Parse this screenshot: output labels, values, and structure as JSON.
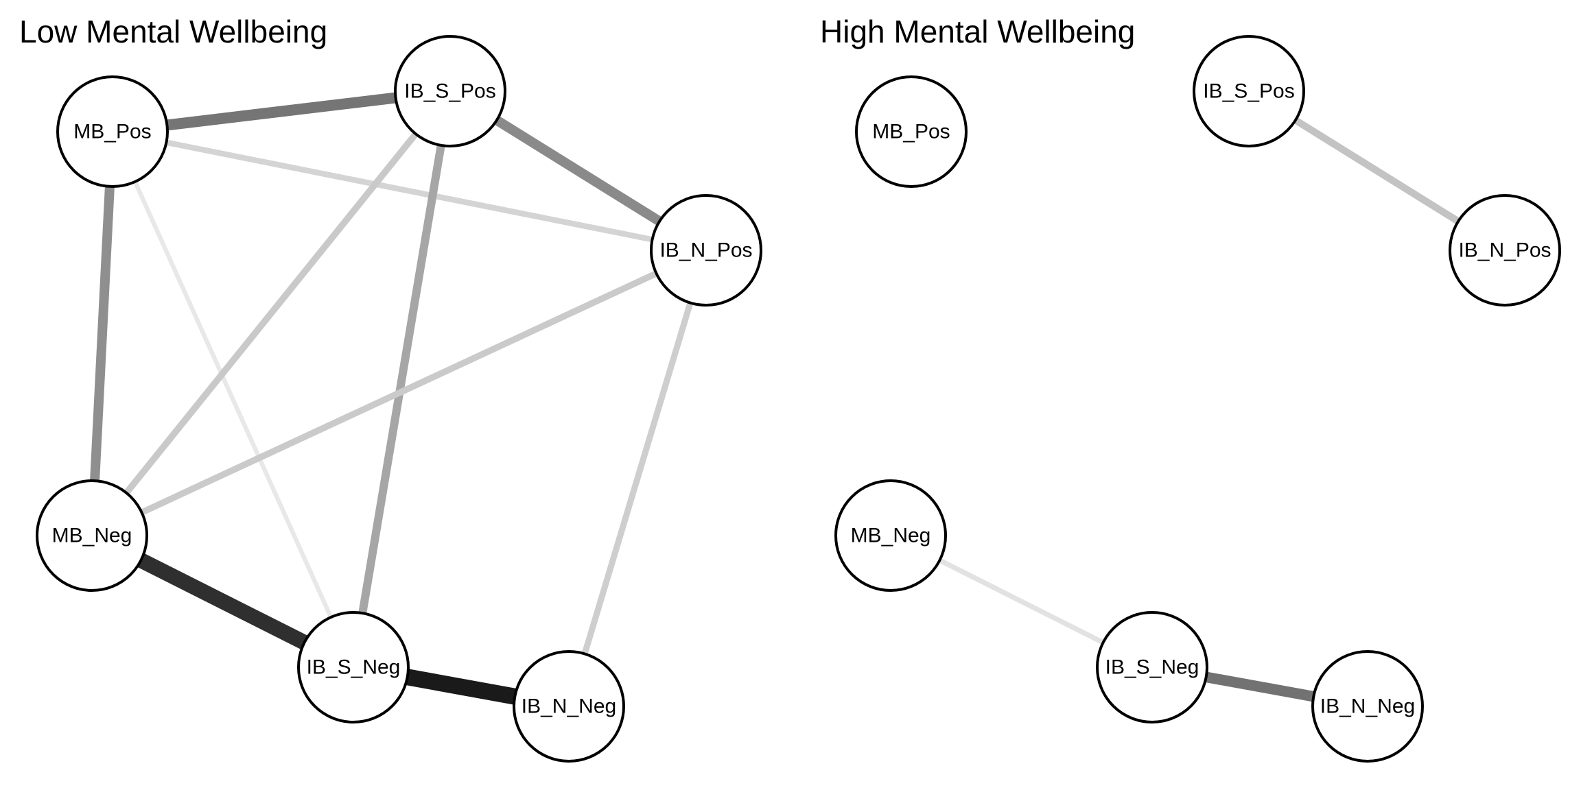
{
  "panels": [
    {
      "id": "low",
      "title": "Low Mental Wellbeing",
      "nodes": [
        {
          "id": "MB_Pos",
          "label": "MB_Pos"
        },
        {
          "id": "IB_S_Pos",
          "label": "IB_S_Pos"
        },
        {
          "id": "IB_N_Pos",
          "label": "IB_N_Pos"
        },
        {
          "id": "MB_Neg",
          "label": "MB_Neg"
        },
        {
          "id": "IB_S_Neg",
          "label": "IB_S_Neg"
        },
        {
          "id": "IB_N_Neg",
          "label": "IB_N_Neg"
        }
      ],
      "edges": [
        {
          "from": "MB_Pos",
          "to": "IB_S_Pos",
          "strength": 0.6,
          "color": "#757575"
        },
        {
          "from": "MB_Pos",
          "to": "IB_N_Pos",
          "strength": 0.22,
          "color": "#d4d4d4"
        },
        {
          "from": "MB_Pos",
          "to": "MB_Neg",
          "strength": 0.5,
          "color": "#8f8f8f"
        },
        {
          "from": "MB_Pos",
          "to": "IB_S_Neg",
          "strength": 0.12,
          "color": "#e8e8e8"
        },
        {
          "from": "IB_S_Pos",
          "to": "IB_N_Pos",
          "strength": 0.52,
          "color": "#8a8a8a"
        },
        {
          "from": "IB_S_Pos",
          "to": "MB_Neg",
          "strength": 0.28,
          "color": "#c9c9c9"
        },
        {
          "from": "IB_S_Pos",
          "to": "IB_S_Neg",
          "strength": 0.4,
          "color": "#a6a6a6"
        },
        {
          "from": "IB_N_Pos",
          "to": "MB_Neg",
          "strength": 0.27,
          "color": "#cacaca"
        },
        {
          "from": "IB_N_Pos",
          "to": "IB_N_Neg",
          "strength": 0.25,
          "color": "#cecece"
        },
        {
          "from": "MB_Neg",
          "to": "IB_S_Neg",
          "strength": 0.92,
          "color": "#2f2f2f"
        },
        {
          "from": "IB_S_Neg",
          "to": "IB_N_Neg",
          "strength": 1.0,
          "color": "#1a1a1a"
        }
      ]
    },
    {
      "id": "high",
      "title": "High Mental Wellbeing",
      "nodes": [
        {
          "id": "MB_Pos",
          "label": "MB_Pos"
        },
        {
          "id": "IB_S_Pos",
          "label": "IB_S_Pos"
        },
        {
          "id": "IB_N_Pos",
          "label": "IB_N_Pos"
        },
        {
          "id": "MB_Neg",
          "label": "MB_Neg"
        },
        {
          "id": "IB_S_Neg",
          "label": "IB_S_Neg"
        },
        {
          "id": "IB_N_Neg",
          "label": "IB_N_Neg"
        }
      ],
      "edges": [
        {
          "from": "IB_S_Pos",
          "to": "IB_N_Pos",
          "strength": 0.32,
          "color": "#c3c3c3"
        },
        {
          "from": "MB_Neg",
          "to": "IB_S_Neg",
          "strength": 0.17,
          "color": "#e2e2e2"
        },
        {
          "from": "IB_S_Neg",
          "to": "IB_N_Neg",
          "strength": 0.58,
          "color": "#727272"
        }
      ]
    }
  ]
}
